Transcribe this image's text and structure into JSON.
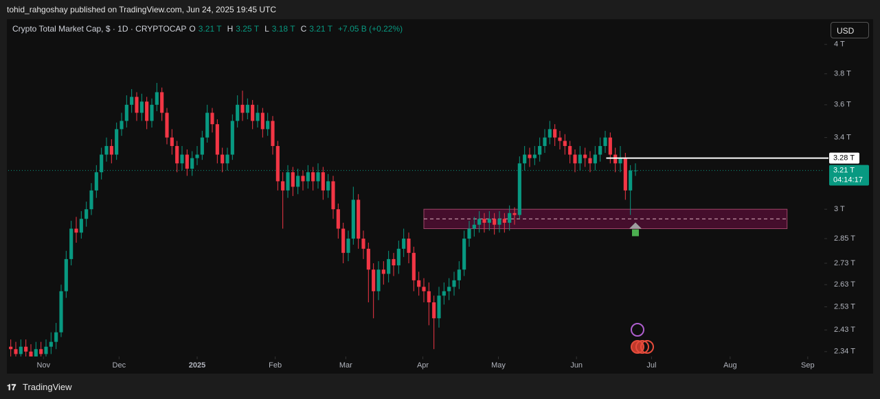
{
  "header": {
    "publisher": "tohid_rahgoshay published on TradingView.com, Jun 24, 2025 19:45 UTC"
  },
  "footer": {
    "brand": "TradingView"
  },
  "chart_data": {
    "type": "candlestick",
    "title": "Crypto Total Market Cap, $ · 1D · CRYPTOCAP",
    "last_ohlc": [
      {
        "key": "O",
        "label": "3.21 T"
      },
      {
        "key": "H",
        "label": "3.25 T"
      },
      {
        "key": "L",
        "label": "3.18 T"
      },
      {
        "key": "C",
        "label": "3.21 T"
      }
    ],
    "change_label": "+7.05 B (+0.22%)",
    "currency": "USD",
    "up_color": "#089981",
    "down_color": "#f23645",
    "yscale": "log",
    "ylim": [
      2.32,
      4.17
    ],
    "yticks": [
      {
        "value": 4,
        "label": "4 T"
      },
      {
        "value": 3.8,
        "label": "3.8 T"
      },
      {
        "value": 3.6,
        "label": "3.6 T"
      },
      {
        "value": 3.4,
        "label": "3.4 T"
      },
      {
        "value": 3,
        "label": "3 T"
      },
      {
        "value": 2.85,
        "label": "2.85 T"
      },
      {
        "value": 2.73,
        "label": "2.73 T"
      },
      {
        "value": 2.63,
        "label": "2.63 T"
      },
      {
        "value": 2.53,
        "label": "2.53 T"
      },
      {
        "value": 2.43,
        "label": "2.43 T"
      },
      {
        "value": 2.34,
        "label": "2.34 T"
      }
    ],
    "xlim": [
      0,
      162
    ],
    "xticks": [
      {
        "value": 7,
        "label": "Nov"
      },
      {
        "value": 22,
        "label": "Dec"
      },
      {
        "value": 37.5,
        "label": "2025"
      },
      {
        "value": 53,
        "label": "Feb"
      },
      {
        "value": 67,
        "label": "Mar"
      },
      {
        "value": 82.3,
        "label": "Apr"
      },
      {
        "value": 97.3,
        "label": "May"
      },
      {
        "value": 112.8,
        "label": "Jun"
      },
      {
        "value": 127.7,
        "label": "Jul"
      },
      {
        "value": 143.3,
        "label": "Aug"
      },
      {
        "value": 158.7,
        "label": "Sep"
      }
    ],
    "open": [
      2.36,
      2.35,
      2.33,
      2.36,
      2.34,
      2.32,
      2.35,
      2.33,
      2.36,
      2.38,
      2.42,
      2.6,
      2.75,
      2.9,
      2.88,
      2.95,
      3.0,
      3.1,
      3.2,
      3.3,
      3.35,
      3.3,
      3.45,
      3.5,
      3.6,
      3.65,
      3.55,
      3.62,
      3.5,
      3.6,
      3.68,
      3.55,
      3.4,
      3.35,
      3.25,
      3.3,
      3.22,
      3.28,
      3.3,
      3.4,
      3.55,
      3.48,
      3.3,
      3.25,
      3.3,
      3.5,
      3.6,
      3.55,
      3.6,
      3.5,
      3.55,
      3.45,
      3.5,
      3.35,
      3.15,
      3.1,
      3.2,
      3.12,
      3.18,
      3.15,
      3.2,
      3.15,
      3.2,
      3.1,
      3.15,
      3.0,
      2.9,
      2.78,
      2.85,
      3.05,
      2.85,
      2.8,
      2.7,
      2.6,
      2.7,
      2.68,
      2.75,
      2.72,
      2.8,
      2.85,
      2.78,
      2.65,
      2.62,
      2.6,
      2.55,
      2.48,
      2.58,
      2.6,
      2.62,
      2.65,
      2.7,
      2.85,
      2.9,
      2.92,
      2.95,
      2.93,
      2.95,
      2.92,
      2.95,
      2.93,
      2.98,
      2.97,
      3.25,
      3.3,
      3.28,
      3.3,
      3.35,
      3.4,
      3.45,
      3.4,
      3.38,
      3.35,
      3.3,
      3.25,
      3.3,
      3.28,
      3.25,
      3.3,
      3.35,
      3.4,
      3.3,
      3.25,
      3.28,
      3.1,
      3.21
    ],
    "high": [
      2.39,
      2.38,
      2.39,
      2.39,
      2.37,
      2.38,
      2.38,
      2.39,
      2.42,
      2.46,
      2.63,
      2.79,
      2.94,
      2.96,
      2.99,
      3.04,
      3.14,
      3.24,
      3.34,
      3.4,
      3.39,
      3.49,
      3.55,
      3.66,
      3.7,
      3.68,
      3.67,
      3.65,
      3.64,
      3.74,
      3.71,
      3.58,
      3.45,
      3.38,
      3.35,
      3.33,
      3.32,
      3.35,
      3.44,
      3.6,
      3.58,
      3.51,
      3.34,
      3.34,
      3.54,
      3.66,
      3.69,
      3.64,
      3.63,
      3.6,
      3.58,
      3.55,
      3.53,
      3.38,
      3.2,
      3.24,
      3.23,
      3.22,
      3.21,
      3.24,
      3.23,
      3.25,
      3.23,
      3.19,
      3.18,
      3.03,
      2.93,
      2.89,
      3.12,
      3.08,
      2.89,
      2.83,
      2.73,
      2.74,
      2.74,
      2.79,
      2.78,
      2.84,
      2.9,
      2.88,
      2.81,
      2.69,
      2.66,
      2.64,
      2.58,
      2.62,
      2.64,
      2.66,
      2.69,
      2.74,
      2.89,
      2.94,
      2.96,
      2.99,
      2.98,
      2.99,
      2.98,
      2.99,
      2.98,
      3.02,
      3.01,
      3.29,
      3.35,
      3.34,
      3.35,
      3.4,
      3.45,
      3.5,
      3.48,
      3.44,
      3.42,
      3.38,
      3.33,
      3.35,
      3.34,
      3.32,
      3.35,
      3.4,
      3.44,
      3.43,
      3.34,
      3.35,
      3.31,
      3.24,
      3.25
    ],
    "low": [
      2.32,
      2.3,
      2.3,
      2.31,
      2.29,
      2.29,
      2.3,
      2.3,
      2.33,
      2.35,
      2.4,
      2.57,
      2.72,
      2.83,
      2.85,
      2.91,
      2.97,
      3.06,
      3.16,
      3.26,
      3.25,
      3.27,
      3.41,
      3.46,
      3.55,
      3.5,
      3.5,
      3.45,
      3.46,
      3.56,
      3.5,
      3.36,
      3.3,
      3.2,
      3.21,
      3.18,
      3.18,
      3.24,
      3.27,
      3.37,
      3.43,
      3.25,
      3.2,
      3.21,
      3.27,
      3.46,
      3.5,
      3.51,
      3.45,
      3.46,
      3.4,
      3.41,
      3.3,
      3.1,
      2.9,
      3.06,
      3.07,
      3.08,
      3.1,
      3.11,
      3.1,
      3.11,
      3.05,
      3.06,
      2.95,
      2.85,
      2.73,
      2.74,
      2.82,
      2.8,
      2.75,
      2.55,
      2.48,
      2.56,
      2.63,
      2.64,
      2.67,
      2.68,
      2.76,
      2.73,
      2.6,
      2.58,
      2.55,
      2.45,
      2.35,
      2.44,
      2.54,
      2.56,
      2.58,
      2.61,
      2.67,
      2.81,
      2.86,
      2.88,
      2.88,
      2.89,
      2.87,
      2.88,
      2.88,
      2.89,
      2.92,
      2.95,
      3.21,
      3.23,
      3.24,
      3.26,
      3.31,
      3.36,
      3.35,
      3.33,
      3.3,
      3.25,
      3.2,
      3.21,
      3.23,
      3.2,
      3.21,
      3.26,
      3.31,
      3.25,
      3.2,
      3.2,
      3.05,
      2.97,
      3.18
    ],
    "close": [
      2.35,
      2.33,
      2.36,
      2.34,
      2.32,
      2.35,
      2.33,
      2.36,
      2.38,
      2.42,
      2.6,
      2.75,
      2.9,
      2.88,
      2.95,
      3.0,
      3.1,
      3.2,
      3.3,
      3.35,
      3.3,
      3.45,
      3.5,
      3.6,
      3.65,
      3.55,
      3.62,
      3.5,
      3.6,
      3.68,
      3.55,
      3.4,
      3.35,
      3.25,
      3.3,
      3.22,
      3.28,
      3.3,
      3.4,
      3.55,
      3.48,
      3.3,
      3.25,
      3.3,
      3.5,
      3.6,
      3.55,
      3.6,
      3.5,
      3.55,
      3.45,
      3.5,
      3.35,
      3.15,
      3.1,
      3.2,
      3.12,
      3.18,
      3.15,
      3.2,
      3.15,
      3.2,
      3.1,
      3.15,
      3.0,
      2.9,
      2.78,
      2.85,
      3.05,
      2.85,
      2.8,
      2.7,
      2.6,
      2.7,
      2.68,
      2.75,
      2.72,
      2.8,
      2.85,
      2.78,
      2.65,
      2.62,
      2.6,
      2.55,
      2.48,
      2.58,
      2.6,
      2.62,
      2.65,
      2.7,
      2.85,
      2.9,
      2.92,
      2.95,
      2.93,
      2.95,
      2.92,
      2.95,
      2.93,
      2.98,
      2.97,
      3.25,
      3.3,
      3.28,
      3.3,
      3.35,
      3.4,
      3.45,
      3.4,
      3.38,
      3.35,
      3.3,
      3.25,
      3.3,
      3.28,
      3.25,
      3.3,
      3.35,
      3.4,
      3.3,
      3.25,
      3.28,
      3.1,
      3.21,
      3.21
    ],
    "price_line": {
      "value": 3.21,
      "label": "3.21 T",
      "countdown": "04:14:17"
    },
    "level": {
      "value": 3.28,
      "label": "3.28 T",
      "x_start": 118.7
    },
    "zone": {
      "low": 2.9,
      "high": 3.0,
      "mid": 2.95,
      "x_start": 82.5,
      "x_end": 154.6
    }
  }
}
